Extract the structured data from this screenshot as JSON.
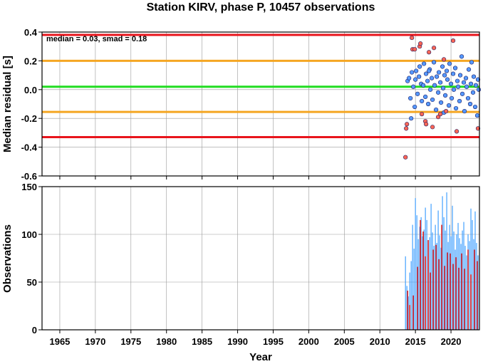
{
  "chart_data": [
    {
      "type": "scatter",
      "title": "Station KIRV, phase P, 10457 observations",
      "xlabel": "",
      "ylabel": "Median residual [s]",
      "annotation": "median = 0.03, smad = 0.18",
      "xlim": [
        1962.5,
        2024
      ],
      "ylim": [
        -0.6,
        0.4
      ],
      "yticks": [
        "0.4",
        "0.2",
        "0.0",
        "-0.2",
        "-0.4",
        "-0.6"
      ],
      "grid": true,
      "reference_lines": [
        {
          "value": 0.38,
          "color": "#e8141c"
        },
        {
          "value": 0.2,
          "color": "#f5a623"
        },
        {
          "value": 0.02,
          "color": "#22dd22"
        },
        {
          "value": -0.155,
          "color": "#f5a623"
        },
        {
          "value": -0.33,
          "color": "#e8141c"
        }
      ],
      "series": [
        {
          "color": "#5599ff",
          "points": [
            [
              2013.9,
              0.06
            ],
            [
              2014.1,
              0.08
            ],
            [
              2014.3,
              -0.06
            ],
            [
              2014.5,
              0.12
            ],
            [
              2014.7,
              0.02
            ],
            [
              2014.9,
              -0.12
            ],
            [
              2015.0,
              0.07
            ],
            [
              2015.1,
              0.13
            ],
            [
              2015.3,
              -0.03
            ],
            [
              2015.5,
              0.09
            ],
            [
              2015.6,
              0.16
            ],
            [
              2015.8,
              0.04
            ],
            [
              2015.9,
              -0.08
            ],
            [
              2016.1,
              0.03
            ],
            [
              2016.2,
              0.18
            ],
            [
              2016.4,
              -0.05
            ],
            [
              2016.5,
              0.11
            ],
            [
              2016.7,
              0.06
            ],
            [
              2016.8,
              -0.1
            ],
            [
              2017.0,
              0.14
            ],
            [
              2017.1,
              0.0
            ],
            [
              2017.3,
              0.08
            ],
            [
              2017.4,
              -0.07
            ],
            [
              2017.6,
              0.19
            ],
            [
              2017.7,
              0.03
            ],
            [
              2017.9,
              -0.14
            ],
            [
              2018.0,
              0.09
            ],
            [
              2018.2,
              -0.02
            ],
            [
              2018.3,
              0.12
            ],
            [
              2018.5,
              0.05
            ],
            [
              2018.6,
              -0.09
            ],
            [
              2018.8,
              0.16
            ],
            [
              2018.9,
              0.01
            ],
            [
              2019.1,
              0.1
            ],
            [
              2019.2,
              -0.04
            ],
            [
              2019.4,
              0.13
            ],
            [
              2019.5,
              0.07
            ],
            [
              2019.7,
              -0.11
            ],
            [
              2019.8,
              0.18
            ],
            [
              2020.0,
              0.04
            ],
            [
              2020.1,
              -0.06
            ],
            [
              2020.3,
              0.11
            ],
            [
              2020.4,
              0.0
            ],
            [
              2020.6,
              0.15
            ],
            [
              2020.7,
              -0.13
            ],
            [
              2020.9,
              0.06
            ],
            [
              2021.0,
              0.02
            ],
            [
              2021.2,
              -0.08
            ],
            [
              2021.3,
              0.1
            ],
            [
              2021.5,
              0.23
            ],
            [
              2021.6,
              -0.03
            ],
            [
              2021.8,
              0.05
            ],
            [
              2021.9,
              -0.15
            ],
            [
              2022.1,
              0.08
            ],
            [
              2022.2,
              0.02
            ],
            [
              2022.4,
              -0.06
            ],
            [
              2022.5,
              0.14
            ],
            [
              2022.7,
              -0.1
            ],
            [
              2022.8,
              0.04
            ],
            [
              2022.9,
              0.19
            ],
            [
              2023.1,
              -0.02
            ],
            [
              2023.2,
              0.09
            ],
            [
              2023.4,
              -0.12
            ],
            [
              2023.5,
              0.03
            ],
            [
              2023.7,
              -0.18
            ],
            [
              2023.8,
              0.07
            ],
            [
              2023.9,
              0.0
            ],
            [
              2014.4,
              -0.2
            ],
            [
              2016.9,
              0.13
            ],
            [
              2019.0,
              -0.16
            ]
          ]
        },
        {
          "color": "#ff6655",
          "points": [
            [
              2013.6,
              -0.47
            ],
            [
              2013.8,
              -0.24
            ],
            [
              2013.7,
              -0.27
            ],
            [
              2014.5,
              0.36
            ],
            [
              2014.6,
              0.28
            ],
            [
              2014.9,
              0.28
            ],
            [
              2015.6,
              0.3
            ],
            [
              2015.7,
              0.32
            ],
            [
              2015.9,
              -0.17
            ],
            [
              2016.4,
              -0.22
            ],
            [
              2016.5,
              -0.24
            ],
            [
              2016.9,
              0.26
            ],
            [
              2017.4,
              -0.26
            ],
            [
              2017.6,
              0.29
            ],
            [
              2018.2,
              -0.19
            ],
            [
              2018.5,
              -0.17
            ],
            [
              2019.0,
              0.21
            ],
            [
              2019.3,
              -0.15
            ],
            [
              2020.3,
              0.34
            ],
            [
              2020.8,
              -0.29
            ],
            [
              2023.8,
              -0.27
            ]
          ]
        }
      ]
    },
    {
      "type": "bar",
      "title": "",
      "xlabel": "Year",
      "ylabel": "Observations",
      "xlim": [
        1962.5,
        2024
      ],
      "ylim": [
        0,
        150
      ],
      "xticks": [
        "1965",
        "1970",
        "1975",
        "1980",
        "1985",
        "1990",
        "1995",
        "2000",
        "2005",
        "2010",
        "2015",
        "2020"
      ],
      "yticks": [
        "150",
        "100",
        "50",
        "0"
      ],
      "grid": true,
      "series": [
        {
          "color": "#3399ff",
          "x": [
            2013.6,
            2013.8,
            2014.0,
            2014.2,
            2014.4,
            2014.6,
            2014.8,
            2015.0,
            2015.2,
            2015.4,
            2015.6,
            2015.8,
            2016.0,
            2016.2,
            2016.4,
            2016.6,
            2016.8,
            2017.0,
            2017.2,
            2017.4,
            2017.6,
            2017.8,
            2018.0,
            2018.2,
            2018.4,
            2018.6,
            2018.8,
            2019.0,
            2019.2,
            2019.4,
            2019.6,
            2019.8,
            2020.0,
            2020.2,
            2020.4,
            2020.6,
            2020.8,
            2021.0,
            2021.2,
            2021.4,
            2021.6,
            2021.8,
            2022.0,
            2022.2,
            2022.4,
            2022.6,
            2022.8,
            2023.0,
            2023.2,
            2023.4,
            2023.6,
            2023.8
          ],
          "values": [
            77,
            46,
            35,
            60,
            72,
            110,
            85,
            138,
            120,
            95,
            108,
            118,
            98,
            105,
            128,
            115,
            90,
            97,
            132,
            102,
            88,
            110,
            91,
            125,
            99,
            86,
            140,
            118,
            104,
            144,
            92,
            110,
            98,
            130,
            103,
            84,
            100,
            112,
            96,
            90,
            104,
            113,
            88,
            78,
            100,
            93,
            127,
            115,
            95,
            124,
            91,
            78
          ]
        },
        {
          "color": "#dd2222",
          "x": [
            2013.9,
            2014.2,
            2014.7,
            2015.3,
            2015.7,
            2016.1,
            2016.4,
            2016.8,
            2017.1,
            2017.5,
            2017.9,
            2018.3,
            2018.7,
            2019.1,
            2019.5,
            2019.9,
            2020.3,
            2020.7,
            2021.1,
            2021.5,
            2021.9,
            2022.4,
            2022.8,
            2023.3,
            2023.7
          ],
          "values": [
            41,
            26,
            36,
            66,
            115,
            103,
            77,
            94,
            60,
            84,
            89,
            74,
            110,
            67,
            81,
            80,
            69,
            76,
            65,
            80,
            64,
            84,
            58,
            84,
            72
          ]
        }
      ]
    }
  ]
}
